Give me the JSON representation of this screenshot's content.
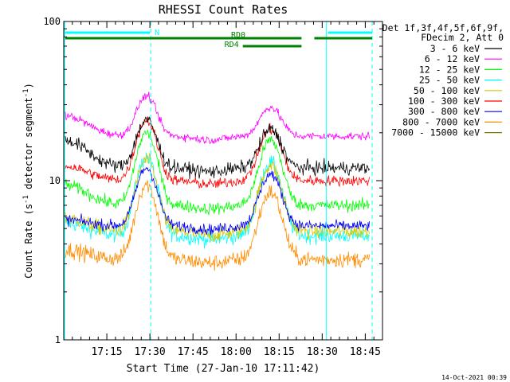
{
  "chart_data": {
    "type": "line",
    "title": "RHESSI Count Rates",
    "xlabel": "Start Time (27-Jan-10 17:11:42)",
    "ylabel": "Count Rate (s",
    "ylabel_sup1": "-1",
    "ylabel_mid": " detector segment",
    "ylabel_sup2": "-1",
    "ylabel_end": ")",
    "y_scale": "log",
    "ylim": [
      1,
      100
    ],
    "y_ticks": [
      {
        "value": 1,
        "label": "1"
      },
      {
        "value": 10,
        "label": "10"
      },
      {
        "value": 100,
        "label": "100"
      }
    ],
    "xlim_minutes": [
      17.0,
      18.85
    ],
    "x_ticks": [
      {
        "value": 17.25,
        "label": "17:15"
      },
      {
        "value": 17.5,
        "label": "17:30"
      },
      {
        "value": 17.75,
        "label": "17:45"
      },
      {
        "value": 18.0,
        "label": "18:00"
      },
      {
        "value": 18.25,
        "label": "18:15"
      },
      {
        "value": 18.5,
        "label": "18:30"
      },
      {
        "value": 18.75,
        "label": "18:45"
      }
    ],
    "legend_header": [
      "Det 1f,3f,4f,5f,6f,9f,",
      "FDecim 2, Att 0"
    ],
    "legend_placement": "right",
    "series": [
      {
        "name": "3 - 6 keV",
        "color": "#000000",
        "peak1": 24,
        "peak2": 21,
        "base": 12,
        "start": 22,
        "noise": 0.1
      },
      {
        "name": "6 - 12 keV",
        "color": "#ff00ff",
        "peak1": 34,
        "peak2": 29,
        "base": 19,
        "start": 30,
        "noise": 0.06
      },
      {
        "name": "12 - 25 keV",
        "color": "#00ff00",
        "peak1": 20,
        "peak2": 18,
        "base": 7,
        "start": 11,
        "noise": 0.09
      },
      {
        "name": "25 - 50 keV",
        "color": "#00ffff",
        "peak1": 14,
        "peak2": 13,
        "base": 4.5,
        "start": 6,
        "noise": 0.11
      },
      {
        "name": "50 - 100 keV",
        "color": "#d4c800",
        "peak1": 13.5,
        "peak2": 12.5,
        "base": 4.8,
        "start": 6.5,
        "noise": 0.11
      },
      {
        "name": "100 - 300 keV",
        "color": "#ff0000",
        "peak1": 24,
        "peak2": 21,
        "base": 10,
        "start": 14,
        "noise": 0.08
      },
      {
        "name": "300 - 800 keV",
        "color": "#0000ff",
        "peak1": 12,
        "peak2": 11,
        "base": 5.2,
        "start": 6,
        "noise": 0.08
      },
      {
        "name": "800 - 7000 keV",
        "color": "#ff8c00",
        "peak1": 9.5,
        "peak2": 8.5,
        "base": 3.2,
        "start": 4,
        "noise": 0.12
      },
      {
        "name": "7000 - 15000 keV",
        "color": "#808000",
        "peak1": 0,
        "peak2": 0,
        "base": 0,
        "start": 0,
        "noise": 0
      }
    ],
    "peaks_minutes": [
      17.48,
      18.2
    ],
    "vertical_markers": [
      {
        "x": 17.0,
        "color": "#00ffff",
        "style": "solid"
      },
      {
        "x": 17.505,
        "color": "#00ffff",
        "style": "dashed"
      },
      {
        "x": 18.525,
        "color": "#00ffff",
        "style": "solid"
      },
      {
        "x": 18.79,
        "color": "#00ffff",
        "style": "dashed"
      }
    ],
    "flag_bars": [
      {
        "label": "N",
        "color": "#00ffff",
        "segments": [
          [
            17.0,
            17.5
          ],
          [
            18.525,
            18.79
          ]
        ]
      },
      {
        "label": "RD0",
        "color": "#008000",
        "segments": [
          [
            17.0,
            18.38
          ],
          [
            18.445,
            18.79
          ]
        ]
      },
      {
        "label": "RD4",
        "color": "#008000",
        "segments": [
          [
            18.03,
            18.38
          ]
        ]
      }
    ],
    "footer_timestamp": "14-Oct-2021 00:39"
  }
}
